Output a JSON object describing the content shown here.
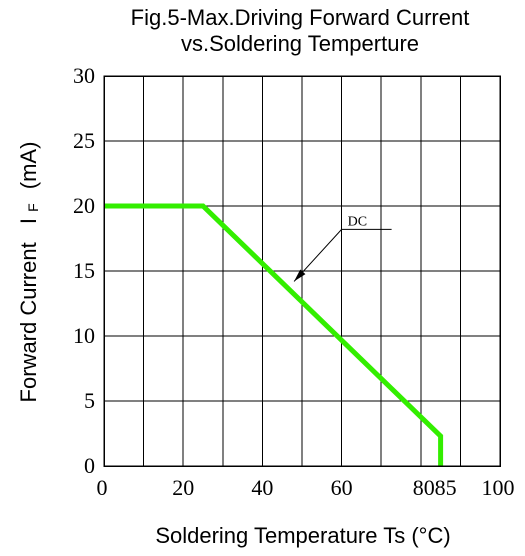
{
  "chart_data": {
    "type": "line",
    "title": "Fig.5-Max.Driving Forward Current",
    "subtitle": "vs.Soldering Temperture",
    "xlabel": "Soldering Temperature Ts (°C)",
    "ylabel_main": "Forward Current",
    "ylabel_symbol": "I",
    "ylabel_subscript": "F",
    "ylabel_unit": "(mA)",
    "xlim": [
      0,
      100
    ],
    "ylim": [
      0,
      30
    ],
    "x_ticks": [
      "0",
      "20",
      "40",
      "60",
      "80",
      "85",
      "100"
    ],
    "y_ticks": [
      "0",
      "5",
      "10",
      "15",
      "20",
      "25",
      "30"
    ],
    "grid": true,
    "series": [
      {
        "name": "DC",
        "color": "#33ee00",
        "x": [
          0,
          25,
          85,
          85
        ],
        "y": [
          20,
          20,
          2.3,
          0
        ]
      }
    ],
    "annotations": [
      {
        "text": "DC",
        "target_x": 48,
        "target_y": 14.2,
        "label_x": 60,
        "label_y": 18.2
      }
    ]
  }
}
